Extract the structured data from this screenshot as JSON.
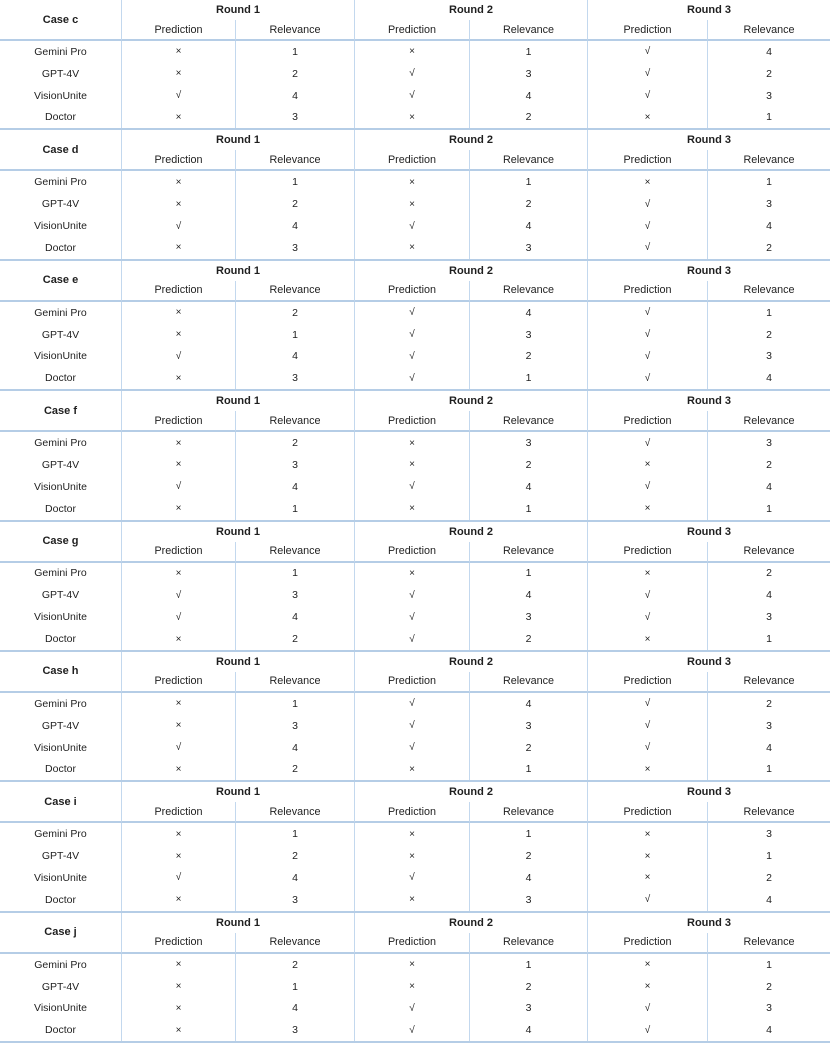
{
  "header": {
    "rounds": [
      "Round 1",
      "Round 2",
      "Round 3"
    ],
    "sub": {
      "prediction": "Prediction",
      "relevance": "Relevance"
    }
  },
  "row_labels": [
    "Gemini Pro",
    "GPT-4V",
    "VisionUnite",
    "Doctor"
  ],
  "symbols": {
    "correct": "√",
    "incorrect": "×"
  },
  "colors": {
    "grid_line": "#bdd6ee",
    "text": "#1f1f1f"
  },
  "sections": [
    {
      "case": "Case c",
      "rows": [
        {
          "model": "Gemini Pro",
          "cells": [
            "×",
            "1",
            "×",
            "1",
            "√",
            "4"
          ]
        },
        {
          "model": "GPT-4V",
          "cells": [
            "×",
            "2",
            "√",
            "3",
            "√",
            "2"
          ]
        },
        {
          "model": "VisionUnite",
          "cells": [
            "√",
            "4",
            "√",
            "4",
            "√",
            "3"
          ]
        },
        {
          "model": "Doctor",
          "cells": [
            "×",
            "3",
            "×",
            "2",
            "×",
            "1"
          ]
        }
      ]
    },
    {
      "case": "Case d",
      "rows": [
        {
          "model": "Gemini Pro",
          "cells": [
            "×",
            "1",
            "×",
            "1",
            "×",
            "1"
          ]
        },
        {
          "model": "GPT-4V",
          "cells": [
            "×",
            "2",
            "×",
            "2",
            "√",
            "3"
          ]
        },
        {
          "model": "VisionUnite",
          "cells": [
            "√",
            "4",
            "√",
            "4",
            "√",
            "4"
          ]
        },
        {
          "model": "Doctor",
          "cells": [
            "×",
            "3",
            "×",
            "3",
            "√",
            "2"
          ]
        }
      ]
    },
    {
      "case": "Case e",
      "rows": [
        {
          "model": "Gemini Pro",
          "cells": [
            "×",
            "2",
            "√",
            "4",
            "√",
            "1"
          ]
        },
        {
          "model": "GPT-4V",
          "cells": [
            "×",
            "1",
            "√",
            "3",
            "√",
            "2"
          ]
        },
        {
          "model": "VisionUnite",
          "cells": [
            "√",
            "4",
            "√",
            "2",
            "√",
            "3"
          ]
        },
        {
          "model": "Doctor",
          "cells": [
            "×",
            "3",
            "√",
            "1",
            "√",
            "4"
          ]
        }
      ]
    },
    {
      "case": "Case f",
      "rows": [
        {
          "model": "Gemini Pro",
          "cells": [
            "×",
            "2",
            "×",
            "3",
            "√",
            "3"
          ]
        },
        {
          "model": "GPT-4V",
          "cells": [
            "×",
            "3",
            "×",
            "2",
            "×",
            "2"
          ]
        },
        {
          "model": "VisionUnite",
          "cells": [
            "√",
            "4",
            "√",
            "4",
            "√",
            "4"
          ]
        },
        {
          "model": "Doctor",
          "cells": [
            "×",
            "1",
            "×",
            "1",
            "×",
            "1"
          ]
        }
      ]
    },
    {
      "case": "Case g",
      "rows": [
        {
          "model": "Gemini Pro",
          "cells": [
            "×",
            "1",
            "×",
            "1",
            "×",
            "2"
          ]
        },
        {
          "model": "GPT-4V",
          "cells": [
            "√",
            "3",
            "√",
            "4",
            "√",
            "4"
          ]
        },
        {
          "model": "VisionUnite",
          "cells": [
            "√",
            "4",
            "√",
            "3",
            "√",
            "3"
          ]
        },
        {
          "model": "Doctor",
          "cells": [
            "×",
            "2",
            "√",
            "2",
            "×",
            "1"
          ]
        }
      ]
    },
    {
      "case": "Case h",
      "rows": [
        {
          "model": "Gemini Pro",
          "cells": [
            "×",
            "1",
            "√",
            "4",
            "√",
            "2"
          ]
        },
        {
          "model": "GPT-4V",
          "cells": [
            "×",
            "3",
            "√",
            "3",
            "√",
            "3"
          ]
        },
        {
          "model": "VisionUnite",
          "cells": [
            "√",
            "4",
            "√",
            "2",
            "√",
            "4"
          ]
        },
        {
          "model": "Doctor",
          "cells": [
            "×",
            "2",
            "×",
            "1",
            "×",
            "1"
          ]
        }
      ]
    },
    {
      "case": "Case i",
      "rows": [
        {
          "model": "Gemini Pro",
          "cells": [
            "×",
            "1",
            "×",
            "1",
            "×",
            "3"
          ]
        },
        {
          "model": "GPT-4V",
          "cells": [
            "×",
            "2",
            "×",
            "2",
            "×",
            "1"
          ]
        },
        {
          "model": "VisionUnite",
          "cells": [
            "√",
            "4",
            "√",
            "4",
            "×",
            "2"
          ]
        },
        {
          "model": "Doctor",
          "cells": [
            "×",
            "3",
            "×",
            "3",
            "√",
            "4"
          ]
        }
      ]
    },
    {
      "case": "Case j",
      "rows": [
        {
          "model": "Gemini Pro",
          "cells": [
            "×",
            "2",
            "×",
            "1",
            "×",
            "1"
          ]
        },
        {
          "model": "GPT-4V",
          "cells": [
            "×",
            "1",
            "×",
            "2",
            "×",
            "2"
          ]
        },
        {
          "model": "VisionUnite",
          "cells": [
            "×",
            "4",
            "√",
            "3",
            "√",
            "3"
          ]
        },
        {
          "model": "Doctor",
          "cells": [
            "×",
            "3",
            "√",
            "4",
            "√",
            "4"
          ]
        }
      ]
    }
  ]
}
